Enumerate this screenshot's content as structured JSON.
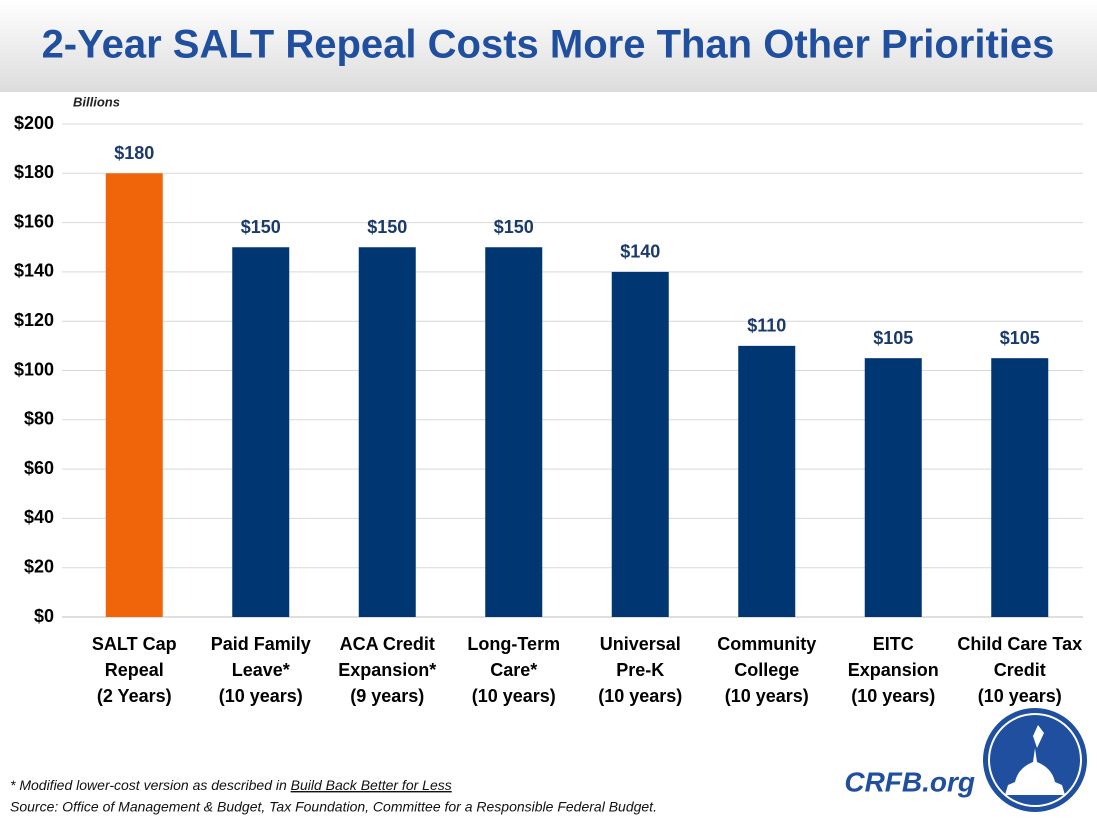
{
  "chart_data": {
    "type": "bar",
    "title": "2-Year SALT Repeal Costs More Than Other Priorities",
    "y_label": "Billions",
    "categories": [
      "SALT Cap\nRepeal\n(2 Years)",
      "Paid Family\nLeave*\n(10 years)",
      "ACA Credit\nExpansion*\n(9 years)",
      "Long-Term\nCare*\n(10 years)",
      "Universal\nPre-K\n(10 years)",
      "Community\nCollege\n(10 years)",
      "EITC\nExpansion\n(10 years)",
      "Child Care Tax\nCredit\n(10 years)"
    ],
    "values": [
      180,
      150,
      150,
      150,
      140,
      110,
      105,
      105
    ],
    "value_labels": [
      "$180",
      "$150",
      "$150",
      "$150",
      "$140",
      "$110",
      "$105",
      "$105"
    ],
    "colors": [
      "#f0640a",
      "#003671",
      "#003671",
      "#003671",
      "#003671",
      "#003671",
      "#003671",
      "#003671"
    ],
    "ylim": [
      0,
      200
    ],
    "yticks": [
      {
        "value": 0,
        "label": "$0"
      },
      {
        "value": 20,
        "label": "$20"
      },
      {
        "value": 40,
        "label": "$40"
      },
      {
        "value": 60,
        "label": "$60"
      },
      {
        "value": 80,
        "label": "$80"
      },
      {
        "value": 100,
        "label": "$100"
      },
      {
        "value": 120,
        "label": "$120"
      },
      {
        "value": 140,
        "label": "$140"
      },
      {
        "value": 160,
        "label": "$160"
      },
      {
        "value": 180,
        "label": "$180"
      },
      {
        "value": 200,
        "label": "$200"
      }
    ],
    "grid": true,
    "note_prefix": "* Modified lower-cost version as described in ",
    "note_link": "Build Back Better for Less",
    "source": "Source: Office of Management & Budget, Tax Foundation, Committee for a Responsible Federal Budget.",
    "logo": "CRFB.org"
  }
}
